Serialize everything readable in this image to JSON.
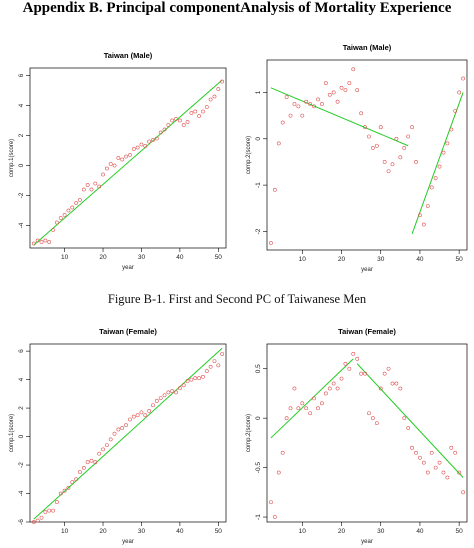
{
  "page": {
    "heading": "Appendix B. Principal componentAnalysis of Mortality Experience",
    "caption": "Figure B-1. First and Second PC of Taiwanese Men"
  },
  "colors": {
    "points": "#e05050",
    "fit": "#22cc22",
    "axis": "#000000"
  },
  "chart_data": [
    {
      "type": "scatter",
      "title": "Taiwan  (Male)",
      "xlabel": "year",
      "ylabel": "comp.1(score)",
      "xlim": [
        1,
        52
      ],
      "ylim": [
        -5.5,
        6.5
      ],
      "xticks": [
        10,
        20,
        30,
        40,
        50
      ],
      "yticks": [
        -4,
        -2,
        0,
        2,
        4,
        6
      ],
      "x": [
        2,
        3,
        4,
        5,
        6,
        7,
        8,
        9,
        10,
        11,
        12,
        13,
        14,
        15,
        16,
        17,
        18,
        19,
        20,
        21,
        22,
        23,
        24,
        25,
        26,
        27,
        28,
        29,
        30,
        31,
        32,
        33,
        34,
        35,
        36,
        37,
        38,
        39,
        40,
        41,
        42,
        43,
        44,
        45,
        46,
        47,
        48,
        49,
        50,
        51
      ],
      "y": [
        -5.2,
        -5.0,
        -5.1,
        -5.0,
        -5.1,
        -4.3,
        -3.8,
        -3.5,
        -3.3,
        -3.0,
        -2.8,
        -2.5,
        -2.3,
        -1.6,
        -1.3,
        -1.6,
        -1.2,
        -1.4,
        -0.6,
        -0.2,
        0.1,
        0.0,
        0.5,
        0.4,
        0.6,
        0.7,
        1.1,
        1.2,
        1.4,
        1.3,
        1.6,
        1.7,
        1.8,
        2.2,
        2.4,
        2.7,
        3.0,
        3.1,
        3.0,
        2.7,
        2.9,
        3.5,
        3.6,
        3.3,
        3.6,
        3.9,
        4.4,
        4.6,
        5.1,
        5.6
      ],
      "fit": [
        {
          "x": [
            2,
            51
          ],
          "y": [
            -5.3,
            5.7
          ]
        }
      ]
    },
    {
      "type": "scatter",
      "title": "Taiwan  (Male)",
      "xlabel": "year",
      "ylabel": "comp.2(score)",
      "xlim": [
        1,
        52
      ],
      "ylim": [
        -2.4,
        1.7
      ],
      "xticks": [
        10,
        20,
        30,
        40,
        50
      ],
      "yticks": [
        -2,
        -1,
        0,
        1
      ],
      "x": [
        2,
        3,
        4,
        5,
        6,
        7,
        8,
        9,
        10,
        11,
        12,
        13,
        14,
        15,
        16,
        17,
        18,
        19,
        20,
        21,
        22,
        23,
        24,
        25,
        26,
        27,
        28,
        29,
        30,
        31,
        32,
        33,
        34,
        35,
        36,
        37,
        38,
        39,
        40,
        41,
        42,
        43,
        44,
        45,
        46,
        47,
        48,
        49,
        50,
        51
      ],
      "y": [
        -2.25,
        -1.1,
        -0.1,
        0.35,
        0.9,
        0.5,
        0.75,
        0.7,
        0.5,
        0.8,
        0.75,
        0.7,
        0.85,
        0.75,
        1.2,
        0.95,
        1.0,
        0.8,
        1.1,
        1.05,
        1.2,
        1.5,
        1.05,
        0.55,
        0.25,
        0.05,
        -0.2,
        -0.15,
        0.25,
        -0.5,
        -0.7,
        -0.55,
        0.0,
        -0.4,
        -0.2,
        0.05,
        0.25,
        -0.5,
        -1.65,
        -1.85,
        -1.45,
        -1.05,
        -0.85,
        -0.6,
        -0.3,
        -0.1,
        0.2,
        0.6,
        1.0,
        1.3
      ],
      "fit": [
        {
          "x": [
            2,
            37
          ],
          "y": [
            1.1,
            -0.15
          ]
        },
        {
          "x": [
            38,
            51
          ],
          "y": [
            -2.05,
            1.0
          ]
        }
      ]
    },
    {
      "type": "scatter",
      "title": "Taiwan (Female)",
      "xlabel": "year",
      "ylabel": "comp.1(score)",
      "xlim": [
        1,
        52
      ],
      "ylim": [
        -6,
        6.5
      ],
      "xticks": [
        10,
        20,
        30,
        40,
        50
      ],
      "yticks": [
        -6,
        -4,
        -2,
        0,
        2,
        4,
        6
      ],
      "x": [
        2,
        3,
        4,
        5,
        6,
        7,
        8,
        9,
        10,
        11,
        12,
        13,
        14,
        15,
        16,
        17,
        18,
        19,
        20,
        21,
        22,
        23,
        24,
        25,
        26,
        27,
        28,
        29,
        30,
        31,
        32,
        33,
        34,
        35,
        36,
        37,
        38,
        39,
        40,
        41,
        42,
        43,
        44,
        45,
        46,
        47,
        48,
        49,
        50,
        51
      ],
      "y": [
        -6.0,
        -5.9,
        -5.7,
        -5.3,
        -5.2,
        -5.2,
        -4.6,
        -4.0,
        -3.8,
        -3.6,
        -3.2,
        -3.0,
        -2.5,
        -2.2,
        -1.8,
        -1.7,
        -1.8,
        -1.2,
        -0.9,
        -0.6,
        -0.2,
        0.2,
        0.5,
        0.6,
        0.8,
        1.2,
        1.4,
        1.5,
        1.7,
        1.5,
        1.8,
        2.2,
        2.5,
        2.7,
        2.9,
        3.1,
        3.2,
        3.1,
        3.4,
        3.6,
        3.9,
        4.0,
        4.1,
        4.1,
        4.2,
        4.6,
        4.9,
        5.3,
        5.0,
        5.8
      ],
      "fit": [
        {
          "x": [
            2,
            51
          ],
          "y": [
            -5.8,
            6.2
          ]
        }
      ]
    },
    {
      "type": "scatter",
      "title": "Taiwan (Female)",
      "xlabel": "year",
      "ylabel": "comp.2(score)",
      "xlim": [
        1,
        52
      ],
      "ylim": [
        -1.05,
        0.75
      ],
      "xticks": [
        10,
        20,
        30,
        40,
        50
      ],
      "yticks": [
        -1.0,
        -0.5,
        0.0,
        0.5
      ],
      "x": [
        2,
        3,
        4,
        5,
        6,
        7,
        8,
        9,
        10,
        11,
        12,
        13,
        14,
        15,
        16,
        17,
        18,
        19,
        20,
        21,
        22,
        23,
        24,
        25,
        26,
        27,
        28,
        29,
        30,
        31,
        32,
        33,
        34,
        35,
        36,
        37,
        38,
        39,
        40,
        41,
        42,
        43,
        44,
        45,
        46,
        47,
        48,
        49,
        50,
        51
      ],
      "y": [
        -0.85,
        -1.0,
        -0.55,
        -0.35,
        0.0,
        0.1,
        0.3,
        0.1,
        0.15,
        0.1,
        0.05,
        0.2,
        0.1,
        0.15,
        0.25,
        0.3,
        0.35,
        0.3,
        0.4,
        0.55,
        0.5,
        0.65,
        0.6,
        0.45,
        0.45,
        0.05,
        0.0,
        -0.05,
        0.3,
        0.45,
        0.5,
        0.35,
        0.35,
        0.3,
        0.0,
        -0.1,
        -0.3,
        -0.35,
        -0.4,
        -0.45,
        -0.55,
        -0.35,
        -0.5,
        -0.45,
        -0.55,
        -0.6,
        -0.3,
        -0.35,
        -0.55,
        -0.75
      ],
      "fit": [
        {
          "x": [
            2,
            23
          ],
          "y": [
            -0.2,
            0.6
          ]
        },
        {
          "x": [
            24,
            51
          ],
          "y": [
            0.55,
            -0.6
          ]
        }
      ]
    }
  ]
}
